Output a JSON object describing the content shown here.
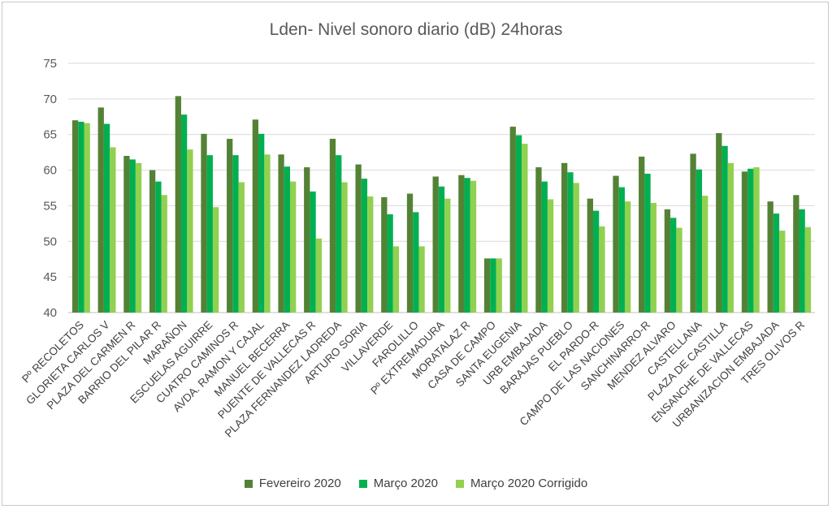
{
  "chart_data": {
    "type": "bar",
    "title": "Lden- Nivel sonoro diario (dB) 24horas",
    "xlabel": "",
    "ylabel": "",
    "ylim": [
      40,
      75
    ],
    "yticks": [
      40,
      45,
      50,
      55,
      60,
      65,
      70,
      75
    ],
    "grid": true,
    "legend_position": "bottom",
    "categories": [
      "Pº RECOLETOS",
      "GLORIETA CARLOS V",
      "PLAZA DEL CARMEN R",
      "BARRIO DEL PILAR R",
      "MARAÑON",
      "ESCUELAS AGUIRRE",
      "CUATRO CAMINOS R",
      "AVDA. RAMON Y CAJAL",
      "MANUEL BECERRA",
      "PUENTE DE VALLECAS R",
      "PLAZA FERNANDEZ LADREDA",
      "ARTURO SORIA",
      "VILLAVERDE",
      "FAROLILLO",
      "Pº EXTREMADURA",
      "MORATALAZ R",
      "CASA DE CAMPO",
      "SANTA EUGENIA",
      "URB EMBAJADA",
      "BARAJAS PUEBLO",
      "EL PARDO-R",
      "CAMPO DE LAS NACIONES",
      "SANCHINARRO-R",
      "MENDEZ ALVARO",
      "CASTELLANA",
      "PLAZA DE CASTILLA",
      "ENSANCHE DE VALLECAS",
      "URBANIZACION EMBAJADA",
      "TRES OLIVOS R"
    ],
    "series": [
      {
        "name": "Fevereiro 2020",
        "color": "#548235",
        "values": [
          67.0,
          68.8,
          62.0,
          60.0,
          70.4,
          65.1,
          64.4,
          67.1,
          62.2,
          60.4,
          64.4,
          60.8,
          56.2,
          56.7,
          59.1,
          59.3,
          47.6,
          66.1,
          60.4,
          61.0,
          56.0,
          59.2,
          61.9,
          54.5,
          62.3,
          65.2,
          59.8,
          55.6,
          56.5
        ]
      },
      {
        "name": "Março 2020",
        "color": "#00B050",
        "values": [
          66.8,
          66.5,
          61.5,
          58.4,
          67.8,
          62.1,
          62.1,
          65.1,
          60.5,
          57.0,
          62.1,
          58.8,
          53.8,
          54.1,
          57.7,
          58.9,
          47.6,
          64.9,
          58.4,
          59.7,
          54.3,
          57.6,
          59.5,
          53.3,
          60.1,
          63.4,
          60.2,
          53.9,
          54.5
        ]
      },
      {
        "name": "Março 2020 Corrigido",
        "color": "#92D050",
        "values": [
          66.6,
          63.2,
          61.0,
          56.5,
          62.9,
          54.8,
          58.3,
          62.2,
          58.4,
          50.4,
          58.3,
          56.3,
          49.3,
          49.3,
          56.0,
          58.5,
          47.6,
          63.7,
          55.9,
          58.2,
          52.1,
          55.6,
          55.4,
          51.9,
          56.4,
          61.0,
          60.4,
          51.5,
          52.0
        ]
      }
    ]
  }
}
